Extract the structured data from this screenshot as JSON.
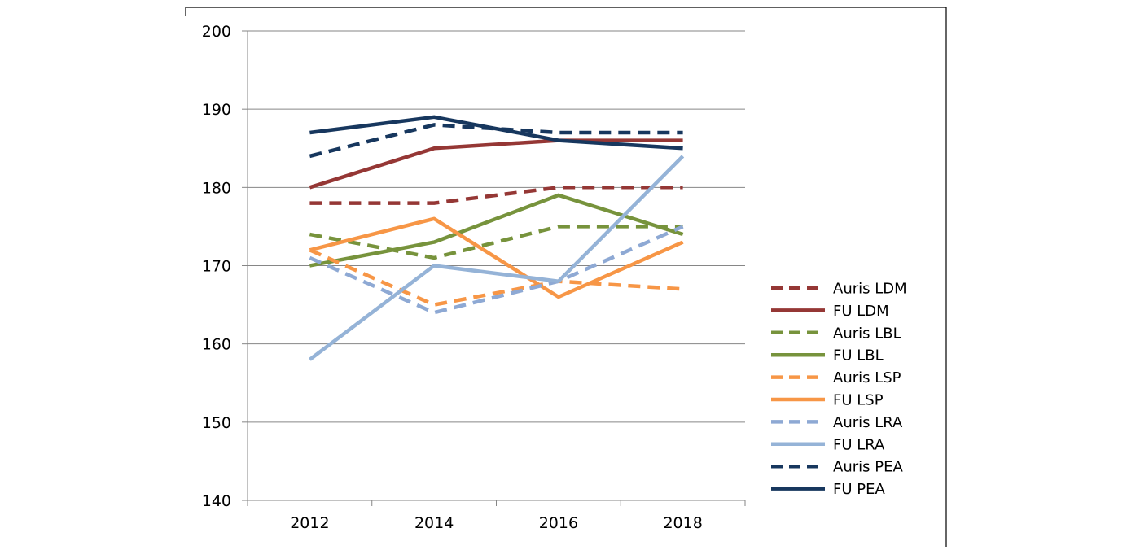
{
  "chart_data": {
    "type": "line",
    "title": "",
    "xlabel": "",
    "ylabel": "",
    "x": [
      "2012",
      "2014",
      "2016",
      "2018"
    ],
    "ylim": [
      140,
      200
    ],
    "yticks": [
      140,
      150,
      160,
      170,
      180,
      190,
      200
    ],
    "grid": true,
    "legend_position": "right",
    "series": [
      {
        "name": "Auris LDM",
        "values": [
          178,
          178,
          180,
          180
        ],
        "color": "#953735",
        "style": "dashed"
      },
      {
        "name": "FU LDM",
        "values": [
          180,
          185,
          186,
          186
        ],
        "color": "#953735",
        "style": "solid"
      },
      {
        "name": "Auris LBL",
        "values": [
          174,
          171,
          175,
          175
        ],
        "color": "#77933C",
        "style": "dashed"
      },
      {
        "name": "FU LBL",
        "values": [
          170,
          173,
          179,
          174
        ],
        "color": "#77933C",
        "style": "solid"
      },
      {
        "name": "Auris LSP",
        "values": [
          172,
          165,
          168,
          167
        ],
        "color": "#F79646",
        "style": "dashed"
      },
      {
        "name": "FU LSP",
        "values": [
          172,
          176,
          166,
          173
        ],
        "color": "#F79646",
        "style": "solid"
      },
      {
        "name": "Auris LRA",
        "values": [
          171,
          164,
          168,
          175
        ],
        "color": "#8EA9D4",
        "style": "dashed"
      },
      {
        "name": "FU LRA",
        "values": [
          158,
          170,
          168,
          184
        ],
        "color": "#95B3D7",
        "style": "solid"
      },
      {
        "name": "Auris PEA",
        "values": [
          184,
          188,
          187,
          187
        ],
        "color": "#17375E",
        "style": "dashed"
      },
      {
        "name": "FU PEA",
        "values": [
          187,
          189,
          186,
          185
        ],
        "color": "#17375E",
        "style": "solid"
      }
    ]
  }
}
